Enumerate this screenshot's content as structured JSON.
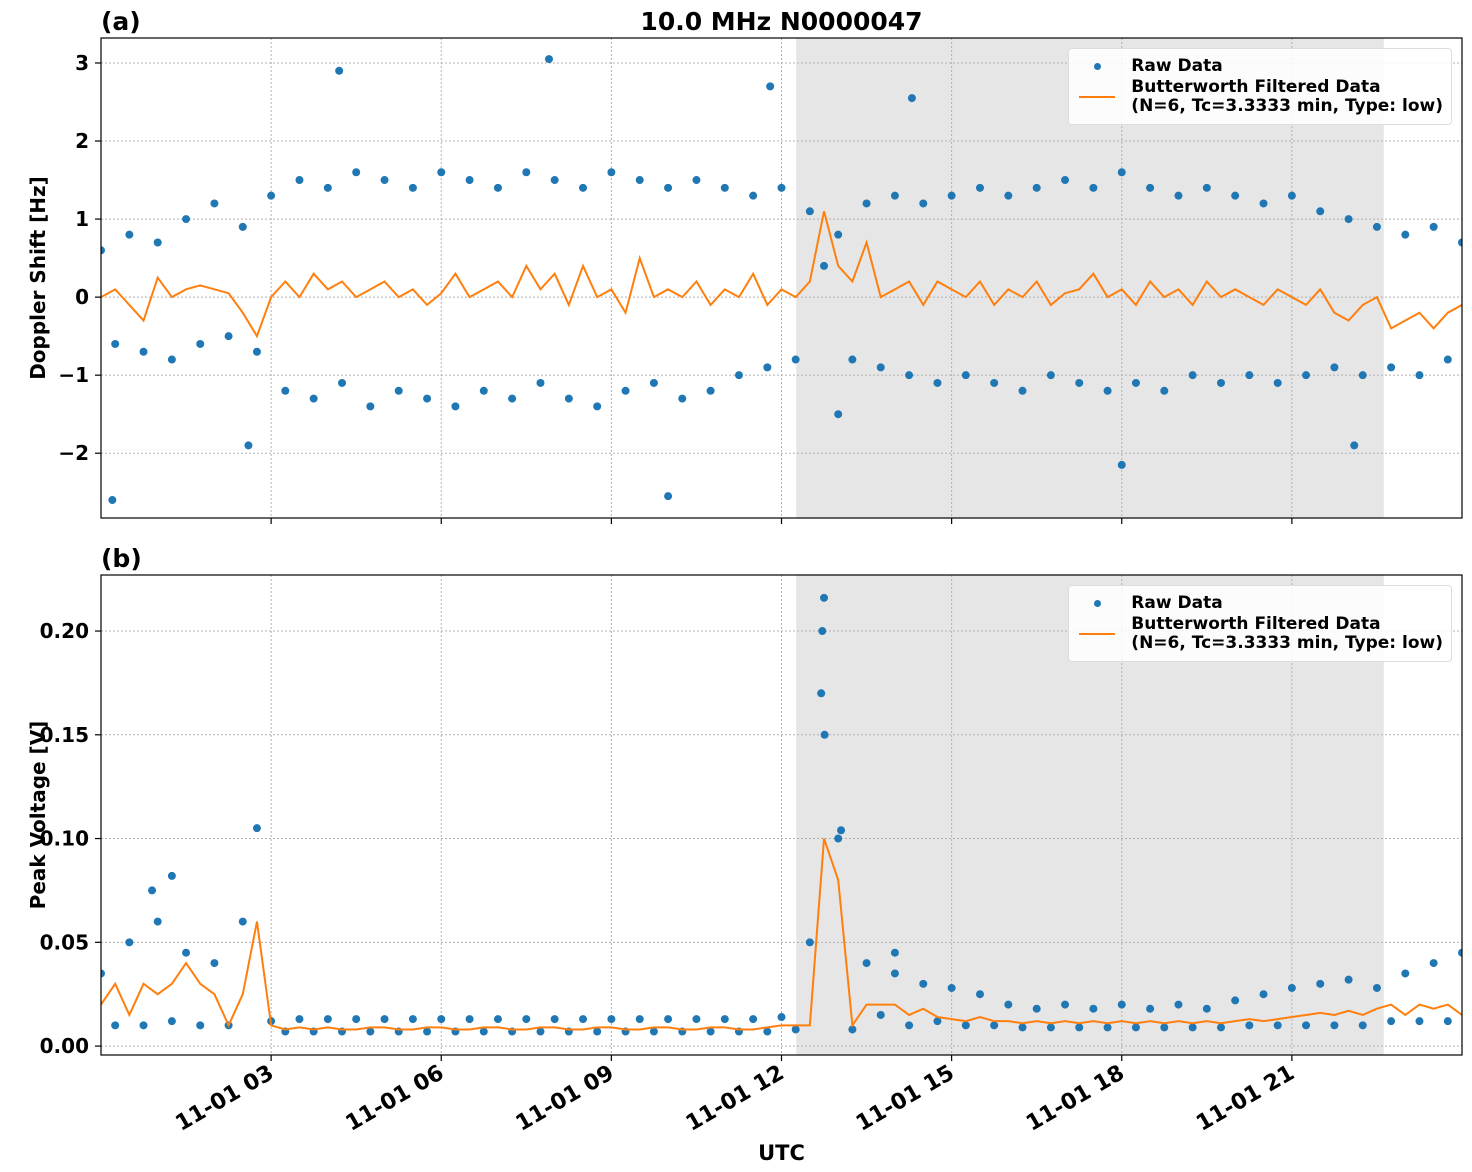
{
  "chart_data": [
    {
      "type": "scatter",
      "title": "10.0 MHz N0000047",
      "panel_label": "(a)",
      "y_label": "Doppler Shift [Hz]",
      "xlim": [
        0,
        24
      ],
      "xticks": [
        3,
        6,
        9,
        12,
        15,
        18,
        21
      ],
      "ylim": [
        -2.83,
        3.32
      ],
      "yticks": [
        {
          "value": -2,
          "label": "−2"
        },
        {
          "value": -1,
          "label": "−1"
        },
        0,
        1,
        2,
        3
      ],
      "grid": true,
      "shade": [
        12.26,
        22.62
      ],
      "shade_color": "#e6e6e6",
      "legend": "upper right",
      "series": [
        {
          "name": "Raw Data",
          "color": "#1f77b4",
          "mode": "markers",
          "x": [
            0,
            0.25,
            0.5,
            0.75,
            1,
            1.25,
            1.5,
            1.75,
            2,
            2.25,
            2.5,
            2.75,
            3,
            3.25,
            3.5,
            3.75,
            4,
            4.25,
            4.5,
            4.75,
            5,
            5.25,
            5.5,
            5.75,
            6,
            6.25,
            6.5,
            6.75,
            7,
            7.25,
            7.5,
            7.75,
            8,
            8.25,
            8.5,
            8.75,
            9,
            9.25,
            9.5,
            9.75,
            10,
            10.25,
            10.5,
            10.75,
            11,
            11.25,
            11.5,
            11.75,
            12,
            12.25,
            12.5,
            12.75,
            13,
            13.25,
            13.5,
            13.75,
            14,
            14.25,
            14.5,
            14.75,
            15,
            15.25,
            15.5,
            15.75,
            16,
            16.25,
            16.5,
            16.75,
            17,
            17.25,
            17.5,
            17.75,
            18,
            18.25,
            18.5,
            18.75,
            19,
            19.25,
            19.5,
            19.75,
            20,
            20.25,
            20.5,
            20.75,
            21,
            21.25,
            21.5,
            21.75,
            22,
            22.25,
            22.5,
            22.75,
            23,
            23.25,
            23.5,
            23.75,
            24,
            0.2,
            4.2,
            7.9,
            10,
            11.8,
            14.3,
            18,
            22.1,
            13,
            2.6
          ],
          "values": [
            0.6,
            -0.6,
            0.8,
            -0.7,
            0.7,
            -0.8,
            1.0,
            -0.6,
            1.2,
            -0.5,
            0.9,
            -0.7,
            1.3,
            -1.2,
            1.5,
            -1.3,
            1.4,
            -1.1,
            1.6,
            -1.4,
            1.5,
            -1.2,
            1.4,
            -1.3,
            1.6,
            -1.4,
            1.5,
            -1.2,
            1.4,
            -1.3,
            1.6,
            -1.1,
            1.5,
            -1.3,
            1.4,
            -1.4,
            1.6,
            -1.2,
            1.5,
            -1.1,
            1.4,
            -1.3,
            1.5,
            -1.2,
            1.4,
            -1.0,
            1.3,
            -0.9,
            1.4,
            -0.8,
            1.1,
            0.4,
            0.8,
            -0.8,
            1.2,
            -0.9,
            1.3,
            -1.0,
            1.2,
            -1.1,
            1.3,
            -1.0,
            1.4,
            -1.1,
            1.3,
            -1.2,
            1.4,
            -1.0,
            1.5,
            -1.1,
            1.4,
            -1.2,
            1.6,
            -1.1,
            1.4,
            -1.2,
            1.3,
            -1.0,
            1.4,
            -1.1,
            1.3,
            -1.0,
            1.2,
            -1.1,
            1.3,
            -1.0,
            1.1,
            -0.9,
            1.0,
            -1.0,
            0.9,
            -0.9,
            0.8,
            -1.0,
            0.9,
            -0.8,
            0.7,
            -2.6,
            2.9,
            3.05,
            -2.55,
            2.7,
            2.55,
            -2.15,
            -1.9,
            -1.5,
            -1.9
          ]
        },
        {
          "name": "Butterworth Filtered Data\n(N=6, Tc=3.3333 min, Type: low)",
          "color": "#ff7f0e",
          "mode": "line",
          "x": [
            0,
            0.25,
            0.5,
            0.75,
            1,
            1.25,
            1.5,
            1.75,
            2,
            2.25,
            2.5,
            2.75,
            3,
            3.25,
            3.5,
            3.75,
            4,
            4.25,
            4.5,
            4.75,
            5,
            5.25,
            5.5,
            5.75,
            6,
            6.25,
            6.5,
            6.75,
            7,
            7.25,
            7.5,
            7.75,
            8,
            8.25,
            8.5,
            8.75,
            9,
            9.25,
            9.5,
            9.75,
            10,
            10.25,
            10.5,
            10.75,
            11,
            11.25,
            11.5,
            11.75,
            12,
            12.25,
            12.5,
            12.75,
            13,
            13.25,
            13.5,
            13.75,
            14,
            14.25,
            14.5,
            14.75,
            15,
            15.25,
            15.5,
            15.75,
            16,
            16.25,
            16.5,
            16.75,
            17,
            17.25,
            17.5,
            17.75,
            18,
            18.25,
            18.5,
            18.75,
            19,
            19.25,
            19.5,
            19.75,
            20,
            20.25,
            20.5,
            20.75,
            21,
            21.25,
            21.5,
            21.75,
            22,
            22.25,
            22.5,
            22.75,
            23,
            23.25,
            23.5,
            23.75,
            24
          ],
          "values": [
            0,
            0.1,
            -0.1,
            -0.3,
            0.25,
            0,
            0.1,
            0.15,
            0.1,
            0.05,
            -0.2,
            -0.5,
            0,
            0.2,
            0,
            0.3,
            0.1,
            0.2,
            0,
            0.1,
            0.2,
            0,
            0.1,
            -0.1,
            0.05,
            0.3,
            0,
            0.1,
            0.2,
            0,
            0.4,
            0.1,
            0.3,
            -0.1,
            0.4,
            0,
            0.1,
            -0.2,
            0.5,
            0,
            0.1,
            0,
            0.2,
            -0.1,
            0.1,
            0,
            0.3,
            -0.1,
            0.1,
            0,
            0.2,
            1.1,
            0.4,
            0.2,
            0.7,
            0,
            0.1,
            0.2,
            -0.1,
            0.2,
            0.1,
            0,
            0.2,
            -0.1,
            0.1,
            0,
            0.2,
            -0.1,
            0.05,
            0.1,
            0.3,
            0,
            0.1,
            -0.1,
            0.2,
            0,
            0.1,
            -0.1,
            0.2,
            0,
            0.1,
            0,
            -0.1,
            0.1,
            0,
            -0.1,
            0.1,
            -0.2,
            -0.3,
            -0.1,
            0,
            -0.4,
            -0.3,
            -0.2,
            -0.4,
            -0.2,
            -0.1
          ]
        }
      ]
    },
    {
      "type": "scatter",
      "panel_label": "(b)",
      "y_label": "Peak Voltage [V]",
      "x_label": "UTC",
      "xlim": [
        0,
        24
      ],
      "xticks": [
        {
          "value": 3,
          "label": "11-01 03"
        },
        {
          "value": 6,
          "label": "11-01 06"
        },
        {
          "value": 9,
          "label": "11-01 09"
        },
        {
          "value": 12,
          "label": "11-01 12"
        },
        {
          "value": 15,
          "label": "11-01 15"
        },
        {
          "value": 18,
          "label": "11-01 18"
        },
        {
          "value": 21,
          "label": "11-01 21"
        }
      ],
      "ylim": [
        -0.0043,
        0.227
      ],
      "yticks": [
        {
          "value": 0,
          "label": "0.00"
        },
        {
          "value": 0.05,
          "label": "0.05"
        },
        {
          "value": 0.1,
          "label": "0.10"
        },
        {
          "value": 0.15,
          "label": "0.15"
        },
        {
          "value": 0.2,
          "label": "0.20"
        }
      ],
      "grid": true,
      "shade": [
        12.26,
        22.62
      ],
      "shade_color": "#e6e6e6",
      "legend": "upper right",
      "series": [
        {
          "name": "Raw Data",
          "color": "#1f77b4",
          "mode": "markers",
          "x": [
            0,
            0.25,
            0.5,
            0.75,
            1,
            1.25,
            1.5,
            1.75,
            2,
            2.25,
            2.5,
            2.75,
            3,
            3.25,
            3.5,
            3.75,
            4,
            4.25,
            4.5,
            4.75,
            5,
            5.25,
            5.5,
            5.75,
            6,
            6.25,
            6.5,
            6.75,
            7,
            7.25,
            7.5,
            7.75,
            8,
            8.25,
            8.5,
            8.75,
            9,
            9.25,
            9.5,
            9.75,
            10,
            10.25,
            10.5,
            10.75,
            11,
            11.25,
            11.5,
            11.75,
            12,
            12.25,
            12.5,
            12.75,
            13,
            13.25,
            13.5,
            13.75,
            14,
            14.25,
            14.5,
            14.75,
            15,
            15.25,
            15.5,
            15.75,
            16,
            16.25,
            16.5,
            16.75,
            17,
            17.25,
            17.5,
            17.75,
            18,
            18.25,
            18.5,
            18.75,
            19,
            19.25,
            19.5,
            19.75,
            20,
            20.25,
            20.5,
            20.75,
            21,
            21.25,
            21.5,
            21.75,
            22,
            22.25,
            22.5,
            22.75,
            23,
            23.25,
            23.5,
            23.75,
            24,
            1.25,
            0.9,
            12.72,
            12.7,
            12.76,
            13.05,
            14.0
          ],
          "values": [
            0.035,
            0.01,
            0.05,
            0.01,
            0.06,
            0.012,
            0.045,
            0.01,
            0.04,
            0.01,
            0.06,
            0.105,
            0.012,
            0.007,
            0.013,
            0.007,
            0.013,
            0.007,
            0.013,
            0.007,
            0.013,
            0.007,
            0.013,
            0.007,
            0.013,
            0.007,
            0.013,
            0.007,
            0.013,
            0.007,
            0.013,
            0.007,
            0.013,
            0.007,
            0.013,
            0.007,
            0.013,
            0.007,
            0.013,
            0.007,
            0.013,
            0.007,
            0.013,
            0.007,
            0.013,
            0.007,
            0.013,
            0.007,
            0.014,
            0.008,
            0.05,
            0.216,
            0.1,
            0.008,
            0.04,
            0.015,
            0.035,
            0.01,
            0.03,
            0.012,
            0.028,
            0.01,
            0.025,
            0.01,
            0.02,
            0.009,
            0.018,
            0.009,
            0.02,
            0.009,
            0.018,
            0.009,
            0.02,
            0.009,
            0.018,
            0.009,
            0.02,
            0.009,
            0.018,
            0.009,
            0.022,
            0.01,
            0.025,
            0.01,
            0.028,
            0.01,
            0.03,
            0.01,
            0.032,
            0.01,
            0.028,
            0.012,
            0.035,
            0.012,
            0.04,
            0.012,
            0.045,
            0.082,
            0.075,
            0.2,
            0.17,
            0.15,
            0.104,
            0.045
          ]
        },
        {
          "name": "Butterworth Filtered Data\n(N=6, Tc=3.3333 min, Type: low)",
          "color": "#ff7f0e",
          "mode": "line",
          "x": [
            0,
            0.25,
            0.5,
            0.75,
            1,
            1.25,
            1.5,
            1.75,
            2,
            2.25,
            2.5,
            2.75,
            3,
            3.25,
            3.5,
            3.75,
            4,
            4.25,
            4.5,
            4.75,
            5,
            5.25,
            5.5,
            5.75,
            6,
            6.25,
            6.5,
            6.75,
            7,
            7.25,
            7.5,
            7.75,
            8,
            8.25,
            8.5,
            8.75,
            9,
            9.25,
            9.5,
            9.75,
            10,
            10.25,
            10.5,
            10.75,
            11,
            11.25,
            11.5,
            11.75,
            12,
            12.25,
            12.5,
            12.75,
            13,
            13.25,
            13.5,
            13.75,
            14,
            14.25,
            14.5,
            14.75,
            15,
            15.25,
            15.5,
            15.75,
            16,
            16.25,
            16.5,
            16.75,
            17,
            17.25,
            17.5,
            17.75,
            18,
            18.25,
            18.5,
            18.75,
            19,
            19.25,
            19.5,
            19.75,
            20,
            20.25,
            20.5,
            20.75,
            21,
            21.25,
            21.5,
            21.75,
            22,
            22.25,
            22.5,
            22.75,
            23,
            23.25,
            23.5,
            23.75,
            24
          ],
          "values": [
            0.02,
            0.03,
            0.015,
            0.03,
            0.025,
            0.03,
            0.04,
            0.03,
            0.025,
            0.01,
            0.025,
            0.06,
            0.01,
            0.008,
            0.009,
            0.008,
            0.009,
            0.008,
            0.008,
            0.009,
            0.009,
            0.008,
            0.008,
            0.009,
            0.009,
            0.008,
            0.008,
            0.009,
            0.009,
            0.008,
            0.008,
            0.009,
            0.009,
            0.008,
            0.008,
            0.009,
            0.009,
            0.008,
            0.008,
            0.009,
            0.009,
            0.008,
            0.008,
            0.009,
            0.009,
            0.008,
            0.008,
            0.009,
            0.01,
            0.01,
            0.01,
            0.1,
            0.08,
            0.01,
            0.02,
            0.02,
            0.02,
            0.015,
            0.018,
            0.014,
            0.013,
            0.012,
            0.014,
            0.012,
            0.012,
            0.011,
            0.012,
            0.011,
            0.012,
            0.011,
            0.012,
            0.011,
            0.012,
            0.011,
            0.012,
            0.011,
            0.012,
            0.011,
            0.012,
            0.011,
            0.012,
            0.013,
            0.012,
            0.013,
            0.014,
            0.015,
            0.016,
            0.015,
            0.017,
            0.015,
            0.018,
            0.02,
            0.015,
            0.02,
            0.018,
            0.02,
            0.015
          ]
        }
      ]
    }
  ]
}
